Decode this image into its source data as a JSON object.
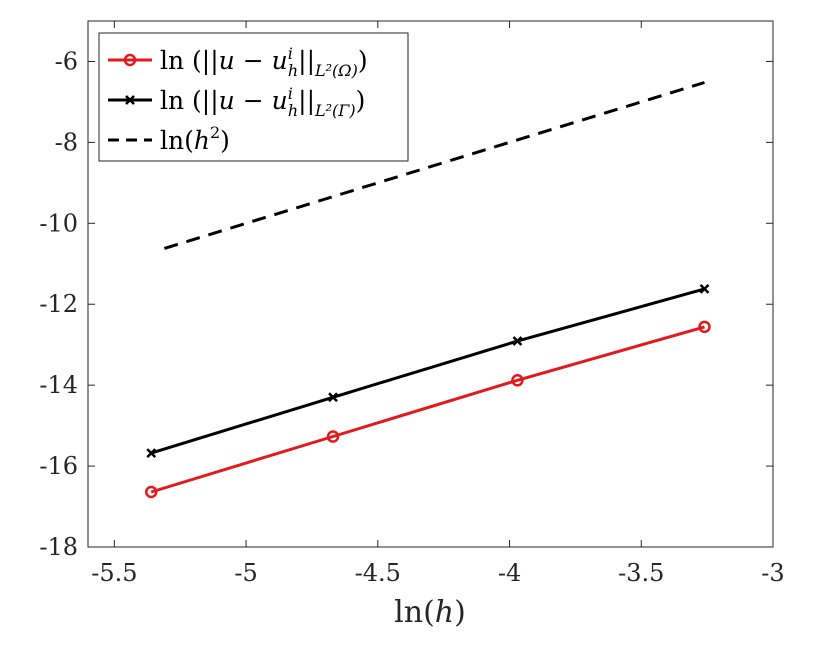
{
  "chart_data": {
    "type": "line",
    "title": "",
    "xlabel_prefix": "ln(",
    "xlabel_var": "h",
    "xlabel_suffix": ")",
    "ylabel": "",
    "xlim": [
      -5.6,
      -3
    ],
    "ylim": [
      -18,
      -5
    ],
    "xticks": [
      -5.5,
      -5,
      -4.5,
      -4,
      -3.5,
      -3
    ],
    "xtick_labels": [
      "-5.5",
      "-5",
      "-4.5",
      "-4",
      "-3.5",
      "-3"
    ],
    "yticks": [
      -18,
      -16,
      -14,
      -12,
      -10,
      -8,
      -6
    ],
    "ytick_labels": [
      "-18",
      "-16",
      "-14",
      "-12",
      "-10",
      "-8",
      "-6"
    ],
    "grid": false,
    "legend_position": "top-left",
    "series": [
      {
        "name": "ln (||u − u_h^i||_{L²(Ω)})",
        "color": "#e31a1c",
        "marker": "circle",
        "dash": "solid",
        "x": [
          -5.36,
          -4.67,
          -3.97,
          -3.26
        ],
        "y": [
          -16.64,
          -15.27,
          -13.88,
          -12.56
        ]
      },
      {
        "name": "ln (||u − u_h^i||_{L²(Γ)})",
        "color": "#000000",
        "marker": "x",
        "dash": "solid",
        "x": [
          -5.36,
          -4.67,
          -3.97,
          -3.26
        ],
        "y": [
          -15.68,
          -14.3,
          -12.91,
          -11.62
        ]
      },
      {
        "name": "ln(h²)",
        "color": "#000000",
        "marker": "none",
        "dash": "dashed",
        "x": [
          -5.31,
          -3.26
        ],
        "y": [
          -10.62,
          -6.52
        ]
      }
    ],
    "legend": {
      "entry1": {
        "prefix": "ln (||",
        "u": "u",
        "minus": " − ",
        "uh": "u",
        "sup": "i",
        "sub": "h",
        "norm": "||",
        "space": "L²(Ω)",
        "close": ")"
      },
      "entry2": {
        "prefix": "ln (||",
        "u": "u",
        "minus": " − ",
        "uh": "u",
        "sup": "i",
        "sub": "h",
        "norm": "||",
        "space": "L²(Γ)",
        "close": ")"
      },
      "entry3": {
        "prefix": "ln(",
        "var": "h",
        "sup": "2",
        "close": ")"
      }
    }
  }
}
